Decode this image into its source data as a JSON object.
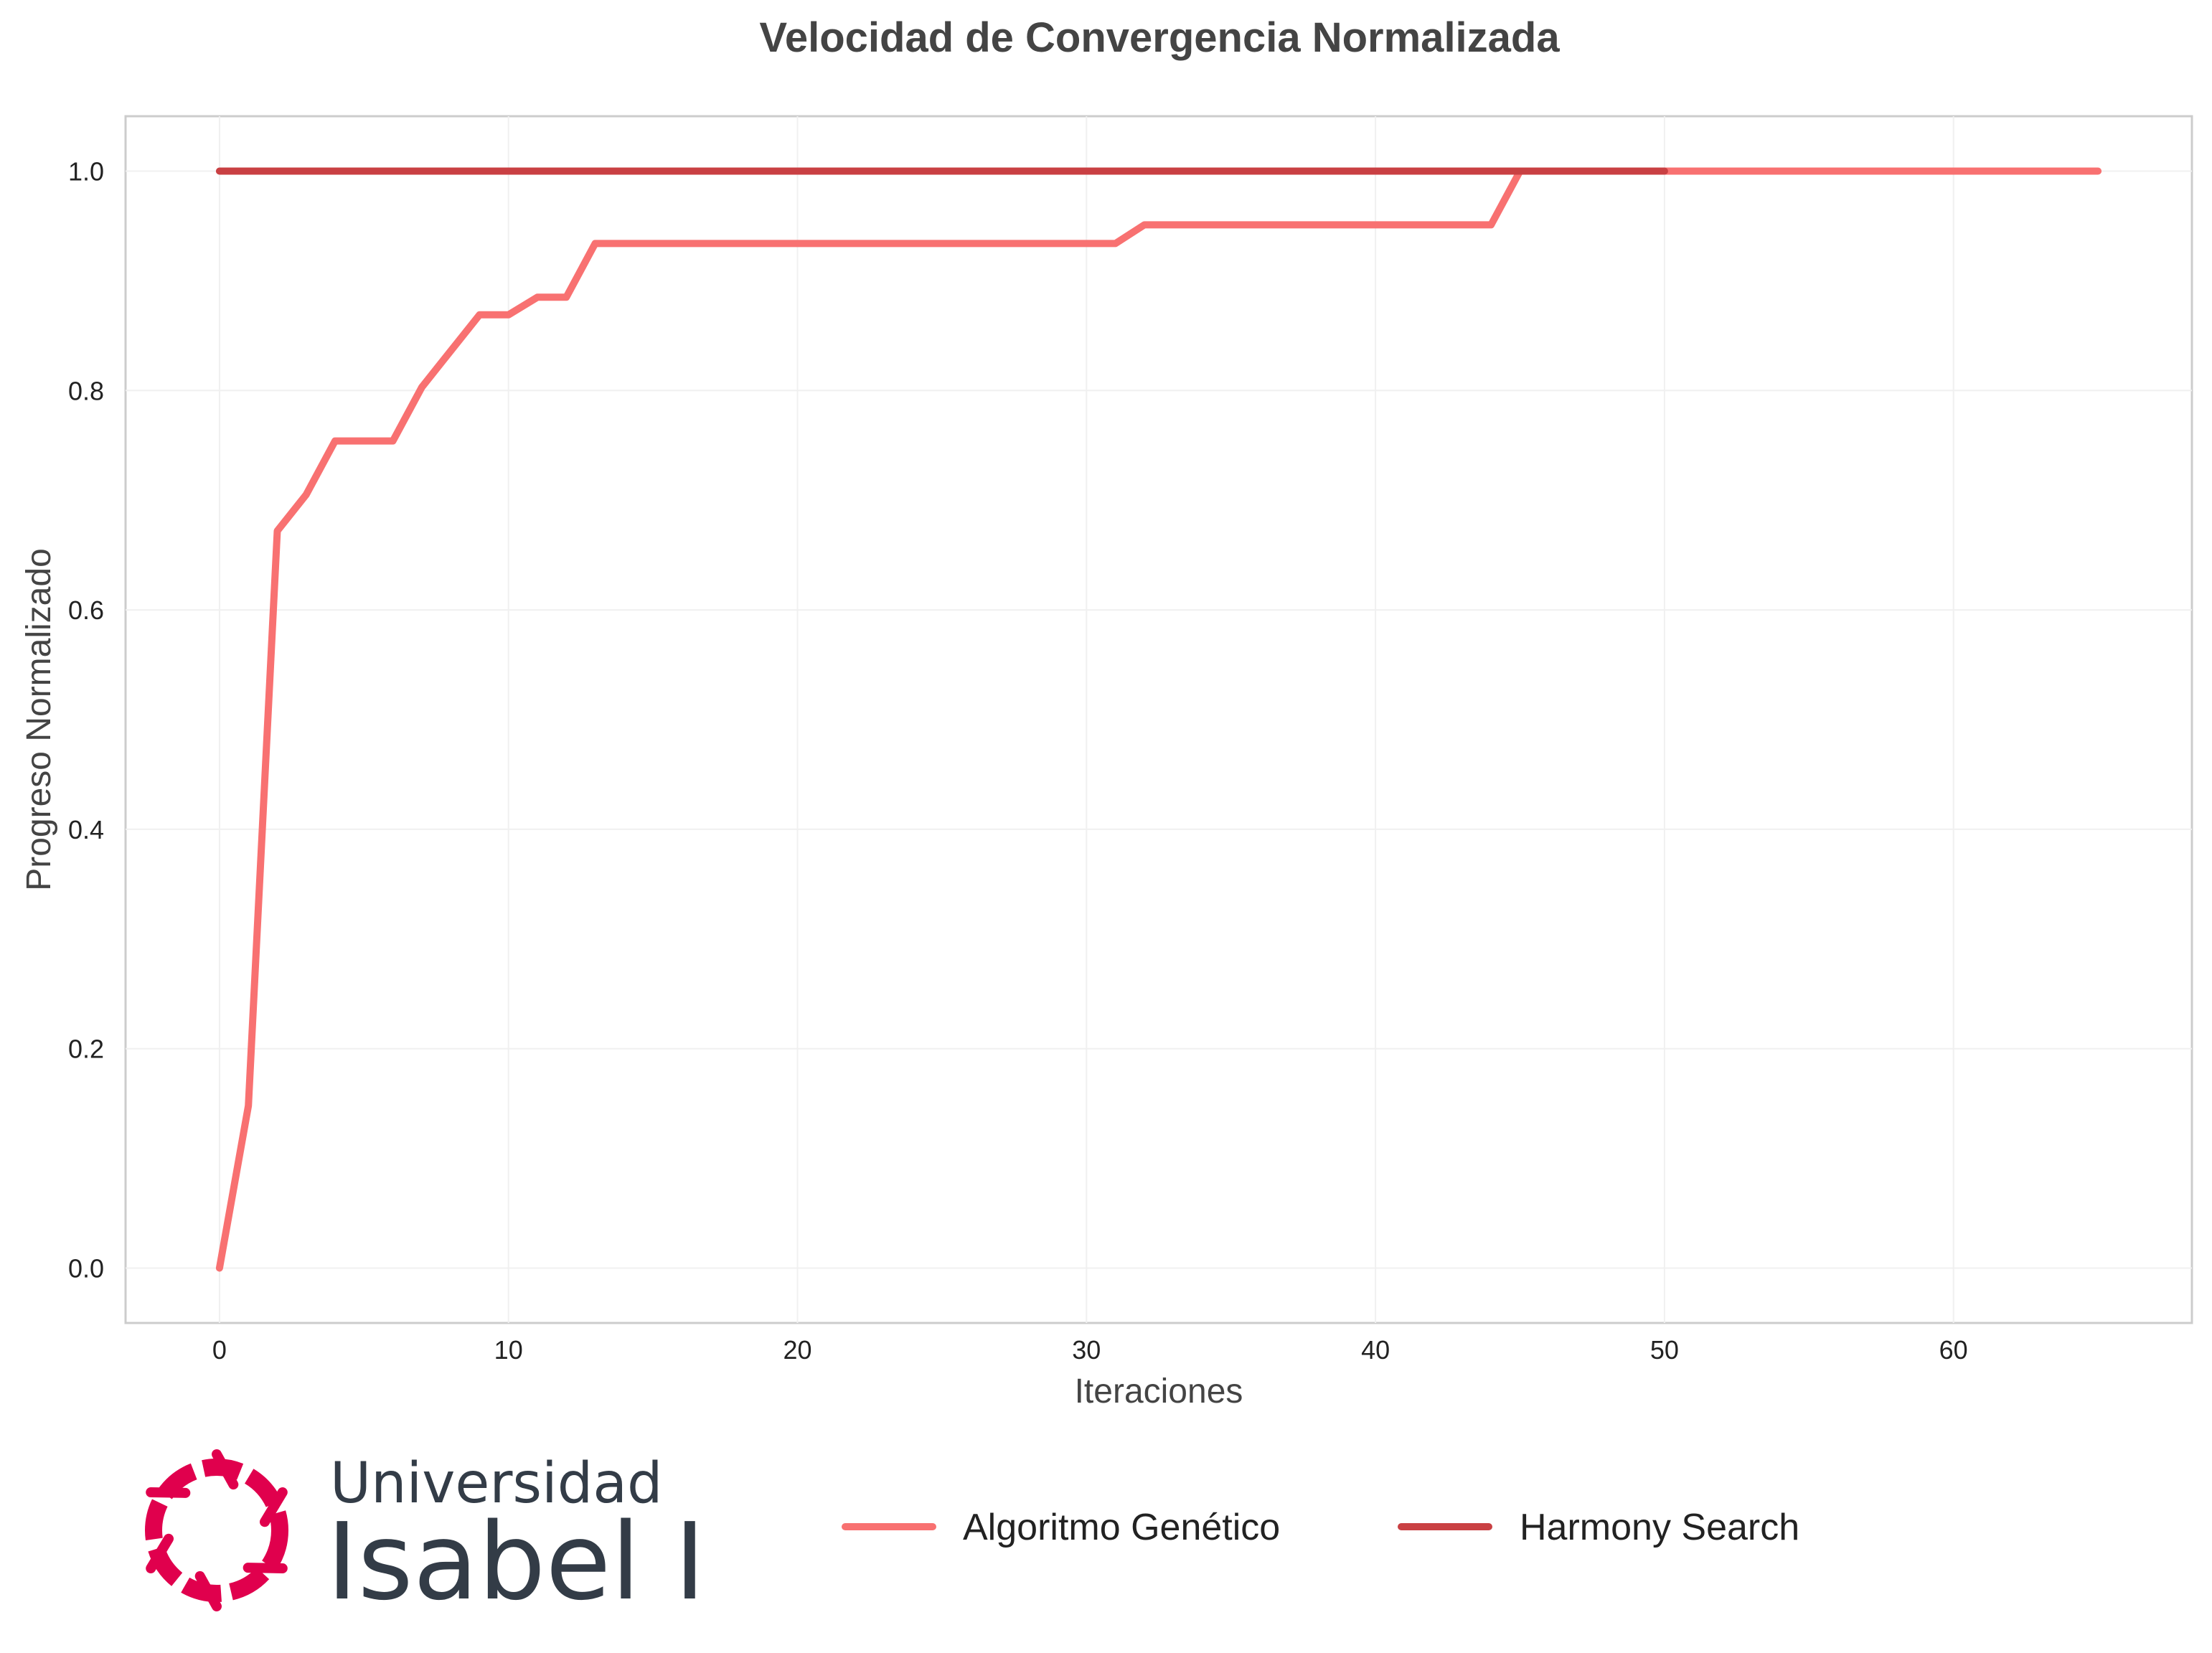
{
  "chart_data": {
    "type": "line",
    "title": "Velocidad de Convergencia Normalizada",
    "xlabel": "Iteraciones",
    "ylabel": "Progreso Normalizado",
    "xlim": [
      -3.25,
      68.25
    ],
    "ylim": [
      -0.05,
      1.05
    ],
    "xticks": [
      0,
      10,
      20,
      30,
      40,
      50,
      60
    ],
    "yticks": [
      0.0,
      0.2,
      0.4,
      0.6,
      0.8,
      1.0
    ],
    "xtick_labels": [
      "0",
      "10",
      "20",
      "30",
      "40",
      "50",
      "60"
    ],
    "ytick_labels": [
      "0.0",
      "0.2",
      "0.4",
      "0.6",
      "0.8",
      "1.0"
    ],
    "grid": true,
    "legend_position": "bottom-center",
    "series": [
      {
        "name": "Algoritmo Genético",
        "color": "#f87171",
        "x": [
          0,
          1,
          2,
          3,
          4,
          5,
          6,
          7,
          8,
          9,
          10,
          11,
          12,
          13,
          14,
          15,
          16,
          17,
          18,
          19,
          20,
          21,
          22,
          23,
          24,
          25,
          26,
          27,
          28,
          29,
          30,
          31,
          32,
          33,
          34,
          35,
          36,
          37,
          38,
          39,
          40,
          41,
          42,
          43,
          44,
          45,
          46,
          47,
          48,
          49,
          50,
          51,
          52,
          53,
          54,
          55,
          56,
          57,
          58,
          59,
          60,
          61,
          62,
          63,
          64,
          65
        ],
        "y": [
          0.0,
          0.148,
          0.672,
          0.705,
          0.754,
          0.754,
          0.754,
          0.803,
          0.836,
          0.869,
          0.869,
          0.885,
          0.885,
          0.934,
          0.934,
          0.934,
          0.934,
          0.934,
          0.934,
          0.934,
          0.934,
          0.934,
          0.934,
          0.934,
          0.934,
          0.934,
          0.934,
          0.934,
          0.934,
          0.934,
          0.934,
          0.934,
          0.951,
          0.951,
          0.951,
          0.951,
          0.951,
          0.951,
          0.951,
          0.951,
          0.951,
          0.951,
          0.951,
          0.951,
          0.951,
          1.0,
          1.0,
          1.0,
          1.0,
          1.0,
          1.0,
          1.0,
          1.0,
          1.0,
          1.0,
          1.0,
          1.0,
          1.0,
          1.0,
          1.0,
          1.0,
          1.0,
          1.0,
          1.0,
          1.0,
          1.0
        ]
      },
      {
        "name": "Harmony Search",
        "color": "#c94043",
        "x": [
          0,
          50
        ],
        "y": [
          1.0,
          1.0
        ]
      }
    ]
  },
  "logo": {
    "line1": "Universidad",
    "line2": "Isabel I",
    "color": "#e0004d"
  }
}
